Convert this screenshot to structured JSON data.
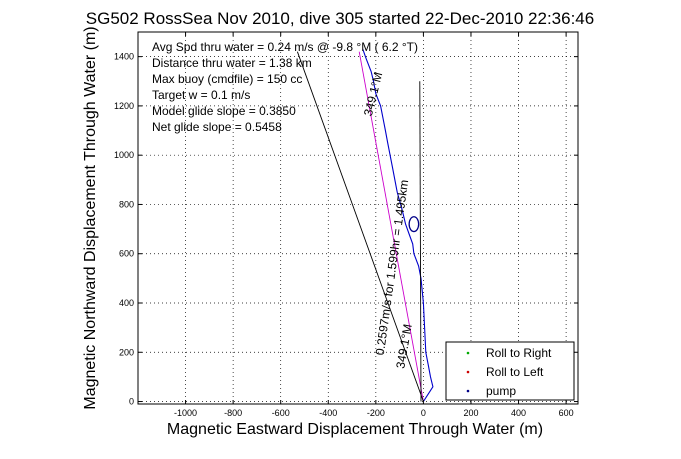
{
  "chart_data": {
    "type": "line",
    "title": "SG502 RossSea Nov 2010, dive 305 started 22-Dec-2010 22:36:46",
    "xlabel": "Magnetic Eastward Displacement Through Water (m)",
    "ylabel": "Magnetic Northward Displacement Through Water (m)",
    "xlim": [
      -1200,
      650
    ],
    "ylim": [
      -10,
      1500
    ],
    "xticks": [
      -1000,
      -800,
      -600,
      -400,
      -200,
      0,
      200,
      400,
      600
    ],
    "yticks": [
      0,
      200,
      400,
      600,
      800,
      1000,
      1200,
      1400
    ],
    "grid": true,
    "annotations": [
      "Avg Spd thru water = 0.24 m/s @ -9.8 °M ( 6.2 °T)",
      "Distance thru water = 1.38 km",
      "Max buoy (cmdfile) = 150 cc",
      "Target w = 0.1 m/s",
      "Model glide slope = 0.3850",
      "Net glide slope = 0.5458"
    ],
    "rotated_labels": [
      "349.1°M",
      "0.2597m/s for 1.599hr = 1.495km",
      "349.1°M"
    ],
    "series": [
      {
        "name": "Roll to Right",
        "color": "#00aa00",
        "marker": "dot"
      },
      {
        "name": "Roll to Left",
        "color": "#cc0000",
        "marker": "dot"
      },
      {
        "name": "pump",
        "color": "#000088",
        "marker": "dot"
      }
    ],
    "lines": [
      {
        "role": "track",
        "color": "#0000cc",
        "x": [
          0,
          20,
          40,
          30,
          20,
          10,
          5,
          0,
          -10,
          -20,
          -40,
          -45,
          -60,
          -75,
          -85,
          -90,
          -110,
          -130,
          -150,
          -160,
          -170,
          -180,
          -200,
          -210,
          -220,
          -240,
          -255
        ],
        "y": [
          0,
          30,
          60,
          100,
          150,
          200,
          300,
          400,
          500,
          550,
          600,
          640,
          680,
          720,
          760,
          780,
          850,
          950,
          1050,
          1100,
          1150,
          1200,
          1250,
          1300,
          1340,
          1390,
          1430
        ]
      },
      {
        "role": "heading",
        "color": "#cc00cc",
        "x": [
          0,
          -270
        ],
        "y": [
          0,
          1420
        ]
      },
      {
        "role": "current-vector",
        "color": "#000000",
        "x": [
          0,
          -530
        ],
        "y": [
          0,
          1420
        ]
      },
      {
        "role": "reference",
        "color": "#000000",
        "x": [
          -10,
          -15
        ],
        "y": [
          0,
          1300
        ]
      }
    ],
    "loop": {
      "x": -40,
      "y": 720,
      "rx": 20,
      "ry": 30,
      "color": "#000088"
    },
    "legend": "bottom-right"
  }
}
